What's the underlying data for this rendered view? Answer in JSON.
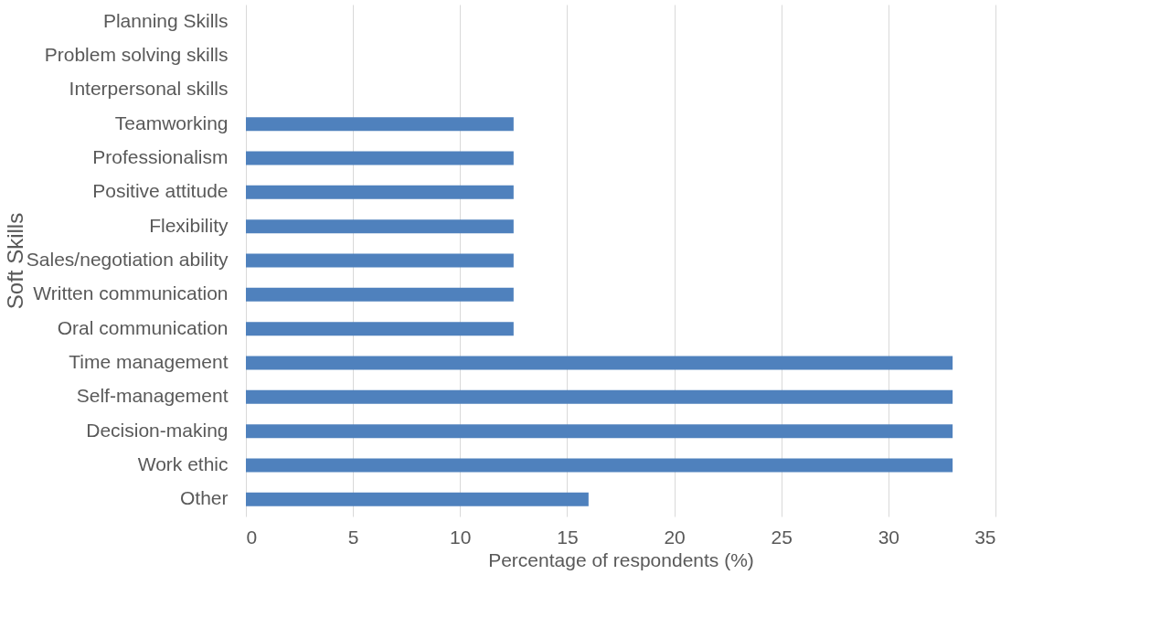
{
  "chart_data": {
    "type": "bar",
    "orientation": "horizontal",
    "xlabel": "Percentage of respondents (%)",
    "ylabel": "Soft Skills",
    "categories": [
      "Planning Skills",
      "Problem solving skills",
      "Interpersonal skills",
      "Teamworking",
      "Professionalism",
      "Positive attitude",
      "Flexibility",
      "Sales/negotiation ability",
      "Written communication",
      "Oral communication",
      "Time management",
      "Self-management",
      "Decision-making",
      "Work ethic",
      "Other"
    ],
    "values": [
      0,
      0,
      0,
      12.5,
      12.5,
      12.5,
      12.5,
      12.5,
      12.5,
      12.5,
      33,
      33,
      33,
      33,
      16
    ],
    "color": "#4f81bd",
    "xlim": [
      0,
      35
    ],
    "xticks": [
      0,
      5,
      10,
      15,
      20,
      25,
      30,
      35
    ],
    "grid": "x"
  }
}
